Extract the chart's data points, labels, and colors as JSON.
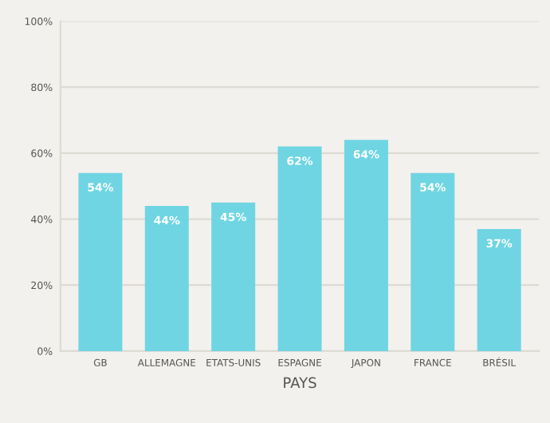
{
  "chart_data": {
    "type": "bar",
    "xlabel": "PAYS",
    "categories": [
      "GB",
      "ALLEMAGNE",
      "ETATS-UNIS",
      "ESPAGNE",
      "JAPON",
      "FRANCE",
      "BRÉSIL"
    ],
    "values": [
      54,
      44,
      45,
      62,
      64,
      54,
      37
    ],
    "value_labels": [
      "54%",
      "44%",
      "45%",
      "62%",
      "64%",
      "54%",
      "37%"
    ],
    "color": "#6fd5e3",
    "ylim": [
      0,
      100
    ],
    "yticks": [
      {
        "value": 0,
        "label": "0%"
      },
      {
        "value": 20,
        "label": "20%"
      },
      {
        "value": 40,
        "label": "40%"
      },
      {
        "value": 60,
        "label": "60%"
      },
      {
        "value": 80,
        "label": "80%"
      },
      {
        "value": 100,
        "label": "100%"
      }
    ],
    "grid": "y"
  }
}
